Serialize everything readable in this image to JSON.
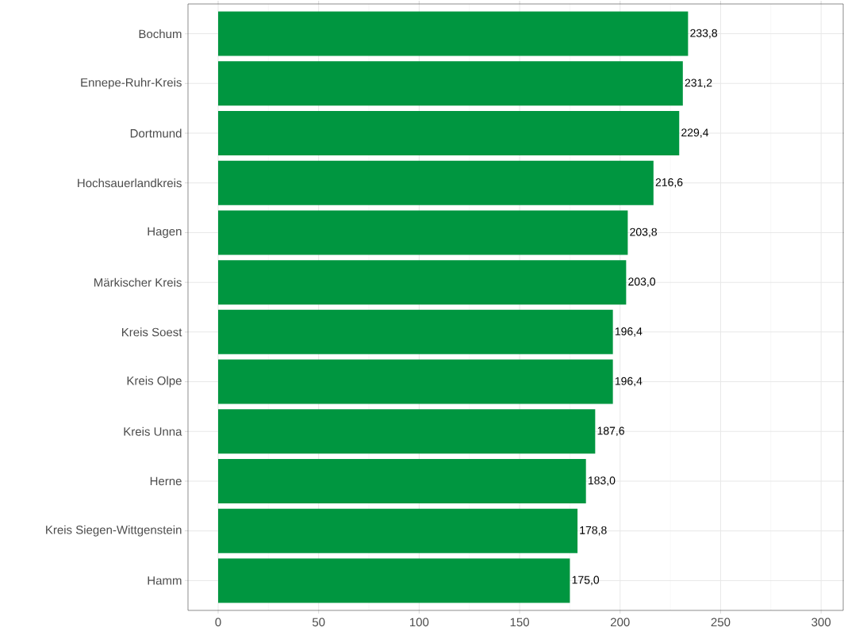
{
  "chart_data": {
    "type": "bar",
    "orientation": "horizontal",
    "categories": [
      "Bochum",
      "Ennepe-Ruhr-Kreis",
      "Dortmund",
      "Hochsauerlandkreis",
      "Hagen",
      "Märkischer Kreis",
      "Kreis Soest",
      "Kreis Olpe",
      "Kreis Unna",
      "Herne",
      "Kreis Siegen-Wittgenstein",
      "Hamm"
    ],
    "values": [
      233.8,
      231.2,
      229.4,
      216.6,
      203.8,
      203.0,
      196.4,
      196.4,
      187.6,
      183.0,
      178.8,
      175.0
    ],
    "value_labels": [
      "233,8",
      "231,2",
      "229,4",
      "216,6",
      "203,8",
      "203,0",
      "196,4",
      "196,4",
      "187,6",
      "183,0",
      "178,8",
      "175,0"
    ],
    "color": "#009640",
    "xlim": [
      -15,
      311
    ],
    "xticks": [
      0,
      50,
      100,
      150,
      200,
      250,
      300
    ],
    "grid": true
  }
}
